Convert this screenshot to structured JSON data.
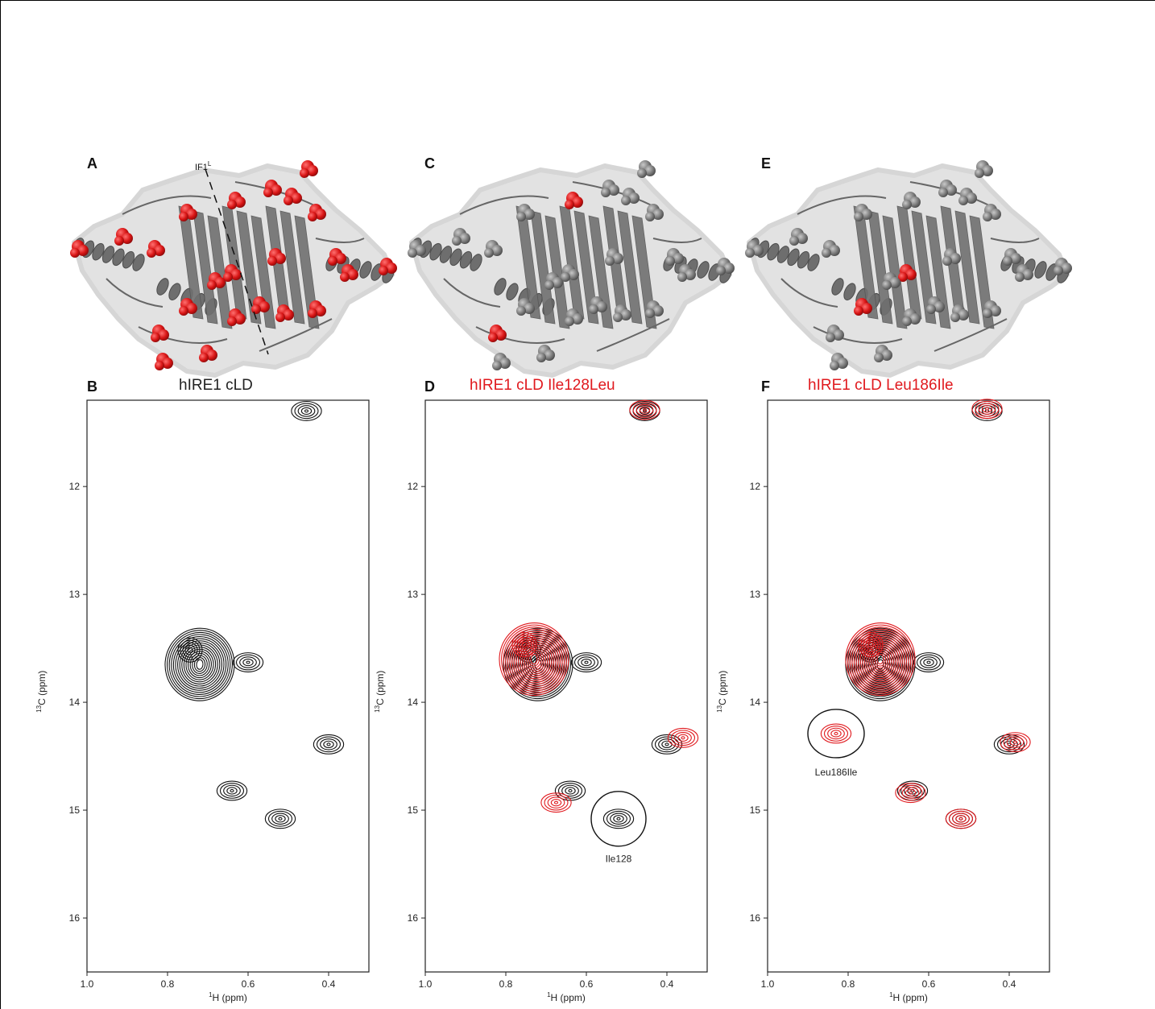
{
  "panels": [
    {
      "letter": "A"
    },
    {
      "letter": "B"
    },
    {
      "letter": "C"
    },
    {
      "letter": "D"
    },
    {
      "letter": "E"
    },
    {
      "letter": "F"
    }
  ],
  "structure_annotation": {
    "label": "IF1",
    "superscript": "L"
  },
  "colors": {
    "wild_type": "#111111",
    "mutant": "#e0191e",
    "surface": "#dcdcdc",
    "cartoon": "#7a7a7a"
  },
  "chart_data": [
    {
      "type": "scatter",
      "title": "hIRE1  cLD",
      "title_color": "#222222",
      "xlabel": "(ppm)",
      "xlabel_isotope": "1H",
      "ylabel": "(ppm)",
      "ylabel_isotope": "13C",
      "xlim": [
        1.0,
        0.3
      ],
      "ylim": [
        16.5,
        11.2
      ],
      "xticks": [
        "1.0",
        "0.8",
        "0.6",
        "0.4"
      ],
      "yticks": [
        "12",
        "13",
        "14",
        "15",
        "16"
      ],
      "series": [
        {
          "color": "#111111",
          "points": [
            {
              "x": 0.455,
              "y": 11.3
            },
            {
              "x": 0.72,
              "y": 13.65
            },
            {
              "x": 0.6,
              "y": 13.63
            },
            {
              "x": 0.4,
              "y": 14.39
            },
            {
              "x": 0.64,
              "y": 14.82
            },
            {
              "x": 0.52,
              "y": 15.08
            }
          ]
        }
      ],
      "annotations": []
    },
    {
      "type": "scatter",
      "title": "hIRE1  cLD Ile128Leu",
      "title_color": "#e0191e",
      "xlabel": "(ppm)",
      "xlabel_isotope": "1H",
      "ylabel": "(ppm)",
      "ylabel_isotope": "13C",
      "xlim": [
        1.0,
        0.3
      ],
      "ylim": [
        16.5,
        11.2
      ],
      "xticks": [
        "1.0",
        "0.8",
        "0.6",
        "0.4"
      ],
      "yticks": [
        "12",
        "13",
        "14",
        "15",
        "16"
      ],
      "series": [
        {
          "color": "#111111",
          "points": [
            {
              "x": 0.455,
              "y": 11.3
            },
            {
              "x": 0.72,
              "y": 13.65
            },
            {
              "x": 0.6,
              "y": 13.63
            },
            {
              "x": 0.4,
              "y": 14.39
            },
            {
              "x": 0.64,
              "y": 14.82
            },
            {
              "x": 0.52,
              "y": 15.08
            }
          ]
        },
        {
          "color": "#e0191e",
          "points": [
            {
              "x": 0.455,
              "y": 11.29
            },
            {
              "x": 0.73,
              "y": 13.6
            },
            {
              "x": 0.36,
              "y": 14.33
            },
            {
              "x": 0.675,
              "y": 14.93
            }
          ]
        }
      ],
      "annotations": [
        {
          "text": "Ile128",
          "x": 0.52,
          "y": 15.45
        }
      ]
    },
    {
      "type": "scatter",
      "title": "hIRE1  cLD Leu186Ile",
      "title_color": "#e0191e",
      "xlabel": "(ppm)",
      "xlabel_isotope": "1H",
      "ylabel": "(ppm)",
      "ylabel_isotope": "13C",
      "xlim": [
        1.0,
        0.3
      ],
      "ylim": [
        16.5,
        11.2
      ],
      "xticks": [
        "1.0",
        "0.8",
        "0.6",
        "0.4"
      ],
      "yticks": [
        "12",
        "13",
        "14",
        "15",
        "16"
      ],
      "series": [
        {
          "color": "#111111",
          "points": [
            {
              "x": 0.455,
              "y": 11.3
            },
            {
              "x": 0.72,
              "y": 13.65
            },
            {
              "x": 0.6,
              "y": 13.63
            },
            {
              "x": 0.4,
              "y": 14.39
            },
            {
              "x": 0.64,
              "y": 14.82
            },
            {
              "x": 0.52,
              "y": 15.08
            }
          ]
        },
        {
          "color": "#e0191e",
          "points": [
            {
              "x": 0.455,
              "y": 11.28
            },
            {
              "x": 0.72,
              "y": 13.6
            },
            {
              "x": 0.83,
              "y": 14.29
            },
            {
              "x": 0.385,
              "y": 14.37
            },
            {
              "x": 0.645,
              "y": 14.84
            },
            {
              "x": 0.52,
              "y": 15.08
            }
          ]
        }
      ],
      "annotations": [
        {
          "text": "Leu186Ile",
          "x": 0.83,
          "y": 14.65
        }
      ]
    }
  ]
}
